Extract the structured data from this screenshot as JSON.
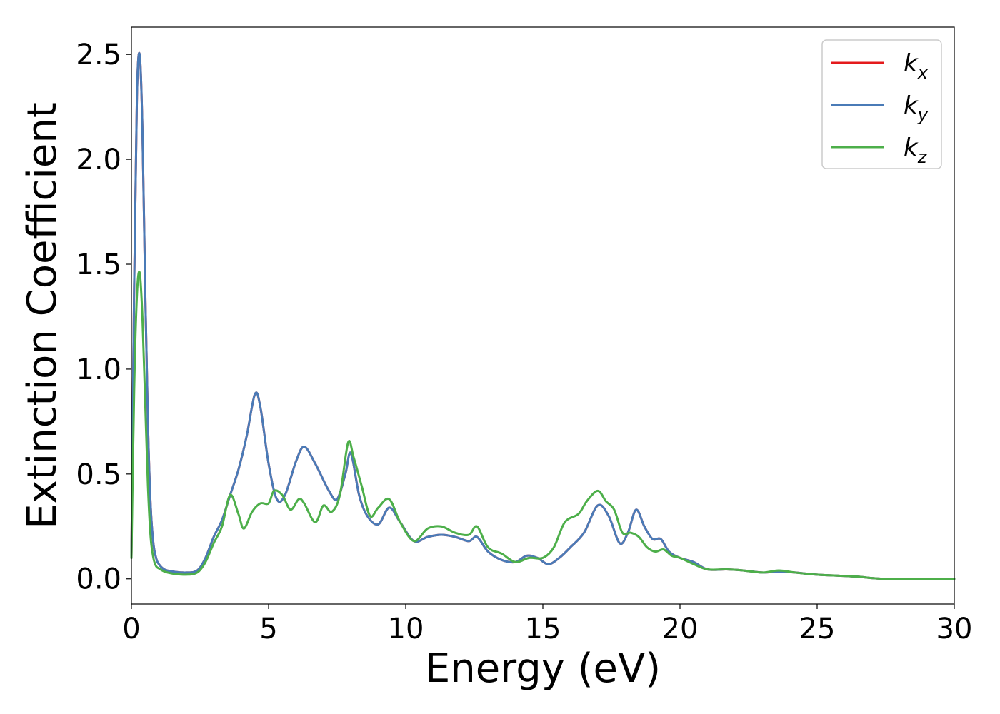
{
  "chart_data": {
    "type": "line",
    "title": "",
    "xlabel": "Energy (eV)",
    "ylabel": "Extinction Coefficient",
    "xlim": [
      0,
      30
    ],
    "ylim": [
      -0.12,
      2.63
    ],
    "xticks": [
      0,
      5,
      10,
      15,
      20,
      25,
      30
    ],
    "yticks": [
      0.0,
      0.5,
      1.0,
      1.5,
      2.0,
      2.5
    ],
    "xtick_labels": [
      "0",
      "5",
      "10",
      "15",
      "20",
      "25",
      "30"
    ],
    "ytick_labels": [
      "0.0",
      "0.5",
      "1.0",
      "1.5",
      "2.0",
      "2.5"
    ],
    "grid": false,
    "legend": "top-right",
    "series": [
      {
        "name": "k_x",
        "legend_base": "k",
        "legend_sub": "x",
        "color": "#e41a1c",
        "x": [
          0,
          0.1,
          0.2,
          0.3,
          0.4,
          0.5,
          0.6,
          0.7,
          0.8,
          0.9,
          1.0,
          1.2,
          1.5,
          2.0,
          2.4,
          2.7,
          3.0,
          3.3,
          3.6,
          3.9,
          4.2,
          4.5,
          4.7,
          5.0,
          5.3,
          5.6,
          6.0,
          6.3,
          6.7,
          7.2,
          7.5,
          7.8,
          8.0,
          8.3,
          8.6,
          9.0,
          9.4,
          9.8,
          10.3,
          10.8,
          11.3,
          11.8,
          12.3,
          12.6,
          13.0,
          13.5,
          14.0,
          14.4,
          14.8,
          15.2,
          15.6,
          16.0,
          16.5,
          17.0,
          17.4,
          17.8,
          18.1,
          18.4,
          18.7,
          19.0,
          19.3,
          19.6,
          20.0,
          20.5,
          21.0,
          21.7,
          22.3,
          23.0,
          23.6,
          24.2,
          25.0,
          25.8,
          26.5,
          27.5,
          30.0
        ],
        "y": [
          0.1,
          1.4,
          2.3,
          2.5,
          2.15,
          1.4,
          0.75,
          0.35,
          0.17,
          0.1,
          0.07,
          0.045,
          0.035,
          0.03,
          0.04,
          0.1,
          0.2,
          0.28,
          0.4,
          0.52,
          0.68,
          0.88,
          0.82,
          0.55,
          0.38,
          0.4,
          0.56,
          0.63,
          0.55,
          0.42,
          0.38,
          0.5,
          0.6,
          0.4,
          0.3,
          0.26,
          0.34,
          0.27,
          0.18,
          0.2,
          0.21,
          0.2,
          0.18,
          0.2,
          0.13,
          0.09,
          0.08,
          0.11,
          0.1,
          0.07,
          0.1,
          0.15,
          0.22,
          0.35,
          0.3,
          0.17,
          0.22,
          0.33,
          0.25,
          0.19,
          0.19,
          0.13,
          0.1,
          0.08,
          0.045,
          0.045,
          0.04,
          0.03,
          0.035,
          0.03,
          0.02,
          0.015,
          0.01,
          0.0,
          0.0
        ]
      },
      {
        "name": "k_y",
        "legend_base": "k",
        "legend_sub": "y",
        "color": "#4a7bb7",
        "x": [
          0,
          0.1,
          0.2,
          0.3,
          0.4,
          0.5,
          0.6,
          0.7,
          0.8,
          0.9,
          1.0,
          1.2,
          1.5,
          2.0,
          2.4,
          2.7,
          3.0,
          3.3,
          3.6,
          3.9,
          4.2,
          4.5,
          4.7,
          5.0,
          5.3,
          5.6,
          6.0,
          6.3,
          6.7,
          7.2,
          7.5,
          7.8,
          8.0,
          8.3,
          8.6,
          9.0,
          9.4,
          9.8,
          10.3,
          10.8,
          11.3,
          11.8,
          12.3,
          12.6,
          13.0,
          13.5,
          14.0,
          14.4,
          14.8,
          15.2,
          15.6,
          16.0,
          16.5,
          17.0,
          17.4,
          17.8,
          18.1,
          18.4,
          18.7,
          19.0,
          19.3,
          19.6,
          20.0,
          20.5,
          21.0,
          21.7,
          22.3,
          23.0,
          23.6,
          24.2,
          25.0,
          25.8,
          26.5,
          27.5,
          30.0
        ],
        "y": [
          0.1,
          1.4,
          2.3,
          2.5,
          2.15,
          1.4,
          0.75,
          0.35,
          0.17,
          0.1,
          0.07,
          0.045,
          0.035,
          0.03,
          0.04,
          0.1,
          0.2,
          0.28,
          0.4,
          0.52,
          0.68,
          0.88,
          0.82,
          0.55,
          0.38,
          0.4,
          0.56,
          0.63,
          0.55,
          0.42,
          0.38,
          0.5,
          0.6,
          0.4,
          0.3,
          0.26,
          0.34,
          0.27,
          0.18,
          0.2,
          0.21,
          0.2,
          0.18,
          0.2,
          0.13,
          0.09,
          0.08,
          0.11,
          0.1,
          0.07,
          0.1,
          0.15,
          0.22,
          0.35,
          0.3,
          0.17,
          0.22,
          0.33,
          0.25,
          0.19,
          0.19,
          0.13,
          0.1,
          0.08,
          0.045,
          0.045,
          0.04,
          0.03,
          0.035,
          0.03,
          0.02,
          0.015,
          0.01,
          0.0,
          0.0
        ]
      },
      {
        "name": "k_z",
        "legend_base": "k",
        "legend_sub": "z",
        "color": "#4daf4a",
        "x": [
          0,
          0.1,
          0.2,
          0.3,
          0.4,
          0.5,
          0.6,
          0.7,
          0.8,
          0.9,
          1.0,
          1.2,
          1.5,
          2.0,
          2.4,
          2.7,
          3.0,
          3.3,
          3.6,
          3.9,
          4.1,
          4.4,
          4.7,
          5.0,
          5.2,
          5.5,
          5.8,
          6.1,
          6.3,
          6.7,
          7.0,
          7.3,
          7.6,
          7.9,
          8.1,
          8.4,
          8.7,
          9.0,
          9.4,
          9.8,
          10.3,
          10.8,
          11.3,
          11.8,
          12.3,
          12.6,
          13.0,
          13.5,
          14.0,
          14.5,
          15.0,
          15.4,
          15.8,
          16.3,
          16.6,
          17.0,
          17.3,
          17.6,
          17.9,
          18.2,
          18.5,
          18.8,
          19.1,
          19.4,
          19.7,
          20.0,
          20.5,
          21.0,
          21.7,
          22.3,
          23.0,
          23.6,
          24.2,
          25.0,
          25.8,
          26.5,
          27.5,
          30.0
        ],
        "y": [
          0.1,
          0.9,
          1.35,
          1.46,
          1.25,
          0.85,
          0.45,
          0.2,
          0.1,
          0.06,
          0.05,
          0.035,
          0.025,
          0.02,
          0.03,
          0.08,
          0.17,
          0.25,
          0.4,
          0.31,
          0.24,
          0.32,
          0.36,
          0.36,
          0.42,
          0.4,
          0.33,
          0.38,
          0.36,
          0.27,
          0.35,
          0.32,
          0.4,
          0.65,
          0.58,
          0.44,
          0.3,
          0.34,
          0.38,
          0.27,
          0.18,
          0.24,
          0.25,
          0.22,
          0.21,
          0.25,
          0.15,
          0.12,
          0.08,
          0.1,
          0.1,
          0.15,
          0.27,
          0.31,
          0.37,
          0.42,
          0.37,
          0.33,
          0.22,
          0.22,
          0.2,
          0.15,
          0.13,
          0.14,
          0.11,
          0.1,
          0.07,
          0.045,
          0.045,
          0.04,
          0.03,
          0.04,
          0.03,
          0.02,
          0.015,
          0.01,
          0.0,
          0.0
        ]
      }
    ]
  }
}
